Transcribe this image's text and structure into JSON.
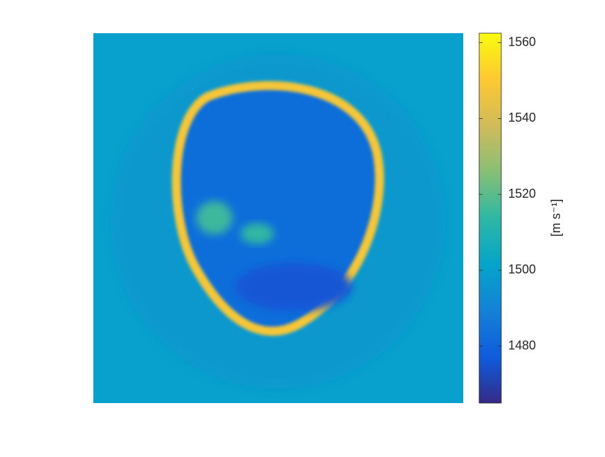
{
  "chart_data": {
    "type": "image",
    "colorbar_label": "[m s⁻¹]",
    "colormap": "parula",
    "clim": [
      1465,
      1562.5
    ],
    "cticks": [
      1480,
      1500,
      1520,
      1540,
      1560
    ],
    "values": [
      1500,
      1497,
      1483,
      1548,
      1516,
      1514,
      1476
    ]
  }
}
